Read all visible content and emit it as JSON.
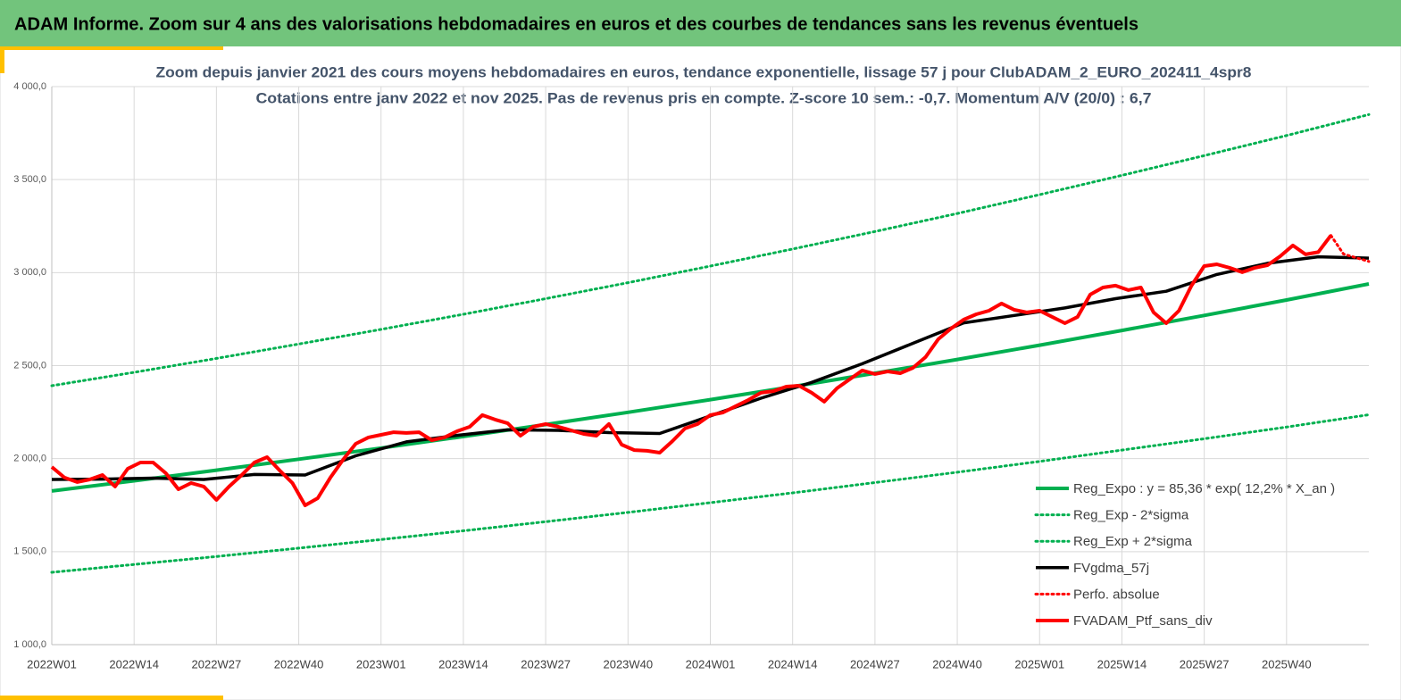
{
  "header": {
    "title": "ADAM Informe. Zoom sur 4 ans des valorisations hebdomadaires en euros et des courbes de tendances sans les revenus éventuels"
  },
  "chart_data": {
    "type": "line",
    "title": "Zoom depuis janvier 2021 des cours moyens hebdomadaires  en euros, tendance exponentielle, lissage 57 j pour ClubADAM_2_EURO_202411_4spr8",
    "subtitle": "Cotations  entre janv 2022 et nov 2025. Pas de revenus pris en compte. Z-score 10 sem.: -0,7. Momentum A/V (20/0) : 6,7",
    "xlim": [
      0,
      208
    ],
    "xticks": [
      {
        "value": 0,
        "label": "2022W01"
      },
      {
        "value": 13,
        "label": "2022W14"
      },
      {
        "value": 26,
        "label": "2022W27"
      },
      {
        "value": 39,
        "label": "2022W40"
      },
      {
        "value": 52,
        "label": "2023W01"
      },
      {
        "value": 65,
        "label": "2023W14"
      },
      {
        "value": 78,
        "label": "2023W27"
      },
      {
        "value": 91,
        "label": "2023W40"
      },
      {
        "value": 104,
        "label": "2024W01"
      },
      {
        "value": 117,
        "label": "2024W14"
      },
      {
        "value": 130,
        "label": "2024W27"
      },
      {
        "value": 143,
        "label": "2024W40"
      },
      {
        "value": 156,
        "label": "2025W01"
      },
      {
        "value": 169,
        "label": "2025W14"
      },
      {
        "value": 182,
        "label": "2025W27"
      },
      {
        "value": 195,
        "label": "2025W40"
      }
    ],
    "ylim": [
      1000,
      4000
    ],
    "yticks": [
      {
        "value": 1000,
        "label": "1 000,0"
      },
      {
        "value": 1500,
        "label": "1 500,0"
      },
      {
        "value": 2000,
        "label": "2 000,0"
      },
      {
        "value": 2500,
        "label": "2 500,0"
      },
      {
        "value": 3000,
        "label": "3 000,0"
      },
      {
        "value": 3500,
        "label": "3 500,0"
      },
      {
        "value": 4000,
        "label": "4 000,0"
      }
    ],
    "grid": true,
    "legend": "lower right",
    "series": [
      {
        "name": "Reg_Expo : y = 85,36 * exp( 12,2% *  X_an )",
        "color": "#00b050",
        "style": "solid",
        "x": [
          0,
          13,
          26,
          39,
          52,
          65,
          78,
          91,
          104,
          117,
          130,
          143,
          156,
          169,
          182,
          195,
          208
        ],
        "values": [
          1826,
          1881,
          1938,
          1997,
          2057,
          2119,
          2183,
          2249,
          2317,
          2387,
          2459,
          2533,
          2610,
          2689,
          2770,
          2853,
          2939
        ]
      },
      {
        "name": "Reg_Exp - 2*sigma",
        "color": "#00b050",
        "style": "dotted",
        "x": [
          0,
          13,
          26,
          39,
          52,
          65,
          78,
          91,
          104,
          117,
          130,
          143,
          156,
          169,
          182,
          195,
          208
        ],
        "values": [
          1389,
          1431,
          1474,
          1519,
          1565,
          1612,
          1661,
          1711,
          1763,
          1816,
          1871,
          1927,
          1985,
          2046,
          2107,
          2170,
          2236
        ]
      },
      {
        "name": "Reg_Exp + 2*sigma",
        "color": "#00b050",
        "style": "dotted",
        "x": [
          0,
          13,
          26,
          39,
          52,
          65,
          78,
          91,
          104,
          117,
          130,
          143,
          156,
          169,
          182,
          195,
          208
        ],
        "values": [
          2392,
          2464,
          2539,
          2616,
          2695,
          2776,
          2860,
          2946,
          3035,
          3127,
          3221,
          3318,
          3419,
          3523,
          3629,
          3737,
          3850
        ]
      },
      {
        "name": "FVgdma_57j",
        "color": "#000000",
        "style": "solid",
        "x": [
          0,
          8,
          16,
          24,
          32,
          40,
          48,
          56,
          64,
          72,
          80,
          88,
          96,
          104,
          112,
          120,
          128,
          136,
          144,
          152,
          160,
          168,
          176,
          184,
          192,
          200,
          208
        ],
        "values": [
          1888,
          1890,
          1895,
          1888,
          1915,
          1912,
          2015,
          2090,
          2125,
          2155,
          2152,
          2140,
          2135,
          2230,
          2325,
          2410,
          2510,
          2620,
          2730,
          2770,
          2810,
          2860,
          2900,
          2990,
          3050,
          3085,
          3078
        ]
      },
      {
        "name": "Perfo. absolue",
        "color": "#ff0000",
        "style": "dotted",
        "x": [
          202,
          204,
          206,
          208
        ],
        "values": [
          3200,
          3100,
          3080,
          3060
        ]
      },
      {
        "name": "FVADAM_Ptf_sans_div",
        "color": "#ff0000",
        "style": "solid",
        "x": [
          0,
          2,
          4,
          6,
          8,
          10,
          12,
          14,
          16,
          18,
          20,
          22,
          24,
          26,
          28,
          30,
          32,
          34,
          36,
          38,
          40,
          42,
          44,
          46,
          48,
          50,
          52,
          54,
          56,
          58,
          60,
          62,
          64,
          66,
          68,
          70,
          72,
          74,
          76,
          78,
          80,
          82,
          84,
          86,
          88,
          90,
          92,
          94,
          96,
          98,
          100,
          102,
          104,
          106,
          108,
          110,
          112,
          114,
          116,
          118,
          120,
          122,
          124,
          126,
          128,
          130,
          132,
          134,
          136,
          138,
          140,
          142,
          144,
          146,
          148,
          150,
          152,
          154,
          156,
          158,
          160,
          162,
          164,
          166,
          168,
          170,
          172,
          174,
          176,
          178,
          180,
          182,
          184,
          186,
          188,
          190,
          192,
          194,
          196,
          198,
          200,
          202
        ],
        "values": [
          1955,
          1898,
          1874,
          1888,
          1912,
          1850,
          1946,
          1979,
          1979,
          1922,
          1835,
          1869,
          1850,
          1778,
          1850,
          1912,
          1979,
          2008,
          1936,
          1869,
          1749,
          1787,
          1898,
          1994,
          2080,
          2114,
          2128,
          2142,
          2138,
          2142,
          2099,
          2114,
          2147,
          2171,
          2234,
          2210,
          2190,
          2123,
          2171,
          2186,
          2171,
          2152,
          2133,
          2123,
          2186,
          2075,
          2046,
          2042,
          2032,
          2094,
          2162,
          2186,
          2234,
          2248,
          2282,
          2315,
          2354,
          2363,
          2387,
          2392,
          2354,
          2306,
          2378,
          2426,
          2474,
          2455,
          2469,
          2459,
          2488,
          2546,
          2642,
          2699,
          2747,
          2776,
          2795,
          2834,
          2800,
          2786,
          2795,
          2762,
          2728,
          2762,
          2882,
          2920,
          2930,
          2906,
          2920,
          2786,
          2728,
          2795,
          2930,
          3035,
          3045,
          3026,
          3002,
          3026,
          3040,
          3088,
          3146,
          3098,
          3110,
          3200
        ]
      }
    ]
  }
}
